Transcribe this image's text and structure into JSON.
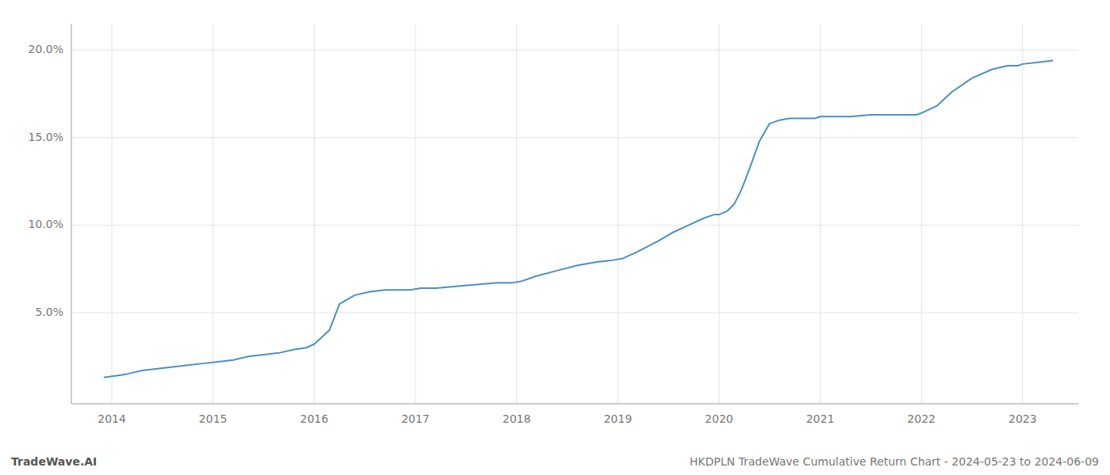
{
  "chart_data": {
    "type": "line",
    "title": "HKDPLN TradeWave Cumulative Return Chart - 2024-05-23 to 2024-06-09",
    "annotations": [
      "TradeWave.AI"
    ],
    "color": "#4a90c4",
    "grid": true,
    "xlim": [
      2013.6,
      2023.55
    ],
    "xticks": [
      2014,
      2015,
      2016,
      2017,
      2018,
      2019,
      2020,
      2021,
      2022,
      2023
    ],
    "ylim": [
      -0.002,
      0.215
    ],
    "yticks": [
      {
        "value": 0.05,
        "label": "5.0%"
      },
      {
        "value": 0.1,
        "label": "10.0%"
      },
      {
        "value": 0.15,
        "label": "15.0%"
      },
      {
        "value": 0.2,
        "label": "20.0%"
      }
    ],
    "x": [
      2013.92,
      2014.05,
      2014.15,
      2014.3,
      2014.45,
      2014.6,
      2014.75,
      2014.9,
      2015.05,
      2015.2,
      2015.35,
      2015.5,
      2015.65,
      2015.8,
      2015.92,
      2016.0,
      2016.15,
      2016.25,
      2016.4,
      2016.55,
      2016.7,
      2016.85,
      2016.95,
      2017.05,
      2017.2,
      2017.4,
      2017.6,
      2017.8,
      2017.95,
      2018.05,
      2018.2,
      2018.4,
      2018.6,
      2018.8,
      2018.95,
      2019.05,
      2019.2,
      2019.4,
      2019.55,
      2019.7,
      2019.85,
      2019.95,
      2020.0,
      2020.08,
      2020.15,
      2020.22,
      2020.3,
      2020.4,
      2020.5,
      2020.6,
      2020.7,
      2020.85,
      2020.95,
      2021.0,
      2021.15,
      2021.3,
      2021.5,
      2021.7,
      2021.85,
      2021.95,
      2022.0,
      2022.15,
      2022.3,
      2022.5,
      2022.7,
      2022.85,
      2022.95,
      2023.0,
      2023.15,
      2023.3
    ],
    "values": [
      0.013,
      0.014,
      0.015,
      0.017,
      0.018,
      0.019,
      0.02,
      0.021,
      0.022,
      0.023,
      0.025,
      0.026,
      0.027,
      0.029,
      0.03,
      0.032,
      0.04,
      0.055,
      0.06,
      0.062,
      0.063,
      0.063,
      0.063,
      0.064,
      0.064,
      0.065,
      0.066,
      0.067,
      0.067,
      0.068,
      0.071,
      0.074,
      0.077,
      0.079,
      0.08,
      0.081,
      0.085,
      0.091,
      0.096,
      0.1,
      0.104,
      0.106,
      0.106,
      0.108,
      0.112,
      0.12,
      0.132,
      0.148,
      0.158,
      0.16,
      0.161,
      0.161,
      0.161,
      0.162,
      0.162,
      0.162,
      0.163,
      0.163,
      0.163,
      0.163,
      0.164,
      0.168,
      0.176,
      0.184,
      0.189,
      0.191,
      0.191,
      0.192,
      0.193,
      0.194
    ]
  }
}
